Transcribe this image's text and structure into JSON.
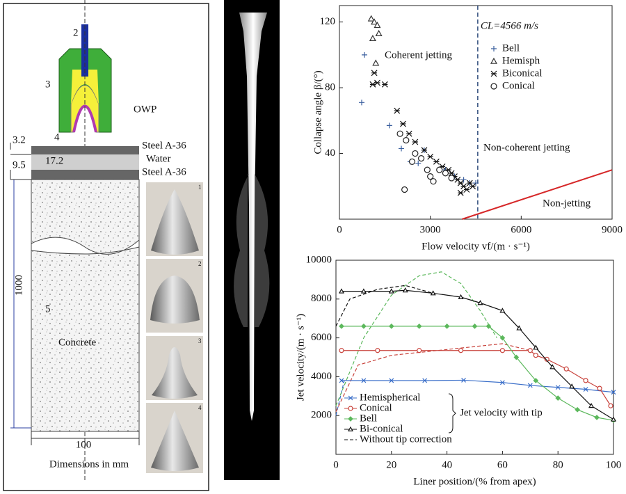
{
  "diagram": {
    "part_labels": [
      "2",
      "3",
      "4",
      "OWP",
      "5"
    ],
    "dims": [
      "3.2",
      "9.5",
      "17.2",
      "1000",
      "100"
    ],
    "layers": [
      "Steel A-36",
      "Water",
      "Steel A-36"
    ],
    "material": "Concrete",
    "caption": "Dimensions in mm",
    "photo_numbers": [
      "1",
      "2",
      "3",
      "4"
    ]
  },
  "chart_data": [
    {
      "type": "scatter",
      "xlabel": "Flow velocity vf/(m · s⁻¹)",
      "ylabel": "Collapse angle β/(°)",
      "xlim": [
        0,
        9000
      ],
      "xticks": [
        0,
        3000,
        6000,
        9000
      ],
      "ylim": [
        0,
        130
      ],
      "yticks": [
        40,
        80,
        120
      ],
      "series": [
        {
          "name": "Bell",
          "color": "#3a5f9e",
          "marker": "plus",
          "x": [
            735,
            826,
            1650,
            2043,
            2340,
            2600,
            2800,
            3500,
            3800,
            4100,
            4300,
            4500
          ],
          "values": [
            71,
            100,
            57,
            43,
            35,
            34,
            42,
            30,
            26,
            24,
            22,
            22
          ]
        },
        {
          "name": "Hemisph",
          "color": "#333333",
          "marker": "triangle",
          "x": [
            1050,
            1150,
            1250,
            1300,
            1100,
            1200
          ],
          "values": [
            122,
            120,
            118,
            113,
            110,
            95
          ]
        },
        {
          "name": "Biconical",
          "color": "#111111",
          "marker": "asterisk",
          "x": [
            1150,
            1250,
            1100,
            1500,
            1900,
            2100,
            2300,
            2500,
            2800,
            3000,
            3200,
            3400,
            3600,
            3700,
            3800,
            3900,
            4000,
            4100,
            4200,
            4300,
            4400,
            4000
          ],
          "values": [
            89,
            83,
            82,
            82,
            66,
            58,
            52,
            47,
            42,
            38,
            35,
            32,
            30,
            28,
            26,
            24,
            22,
            20,
            18,
            22,
            20,
            16
          ]
        },
        {
          "name": "Conical",
          "color": "#222222",
          "marker": "circle",
          "x": [
            2000,
            2200,
            2500,
            2700,
            2900,
            3000,
            3100,
            2150,
            2400,
            3300,
            3500,
            3700
          ],
          "values": [
            52,
            48,
            40,
            37,
            30,
            26,
            23,
            18,
            35,
            30,
            28,
            25
          ]
        }
      ],
      "critical_line": {
        "label": "CL=4566 m/s",
        "value": 4566,
        "color": "#2c4a7a"
      },
      "boundary": {
        "x": [
          4050,
          9000
        ],
        "values": [
          0,
          30
        ],
        "color": "#d62728"
      },
      "regions": [
        "Coherent jetting",
        "Non-coherent jetting",
        "Non-jetting"
      ]
    },
    {
      "type": "line",
      "xlabel": "Liner position/(% from apex)",
      "ylabel": "Jet velocity/(m · s⁻¹)",
      "xlim": [
        0,
        100
      ],
      "xticks": [
        0,
        20,
        40,
        60,
        80,
        100
      ],
      "ylim": [
        0,
        10000
      ],
      "yticks": [
        2000,
        4000,
        6000,
        8000,
        10000
      ],
      "series": [
        {
          "name": "Hemispherical",
          "color": "#3b6fc9",
          "marker": "x",
          "x": [
            2,
            10,
            20,
            32,
            46,
            60,
            70,
            80,
            90,
            100
          ],
          "values": [
            3800,
            3800,
            3800,
            3800,
            3820,
            3700,
            3550,
            3450,
            3350,
            3200
          ]
        },
        {
          "name": "Conical",
          "color": "#c8413a",
          "marker": "circle",
          "x": [
            2,
            15,
            30,
            45,
            60,
            70,
            72,
            76,
            83,
            90,
            95,
            99
          ],
          "values": [
            5350,
            5350,
            5350,
            5350,
            5350,
            5350,
            5100,
            4900,
            4400,
            3800,
            3400,
            2500
          ]
        },
        {
          "name": "Bell",
          "color": "#5cb85c",
          "marker": "diamond",
          "x": [
            2,
            10,
            20,
            30,
            40,
            50,
            55,
            60,
            65,
            72,
            80,
            87,
            94,
            100
          ],
          "values": [
            6600,
            6600,
            6600,
            6600,
            6600,
            6600,
            6600,
            6000,
            5000,
            3800,
            2900,
            2300,
            1900,
            1750
          ]
        },
        {
          "name": "Bi-conical",
          "color": "#111111",
          "marker": "triangle",
          "x": [
            2,
            10,
            20,
            25,
            35,
            45,
            52,
            60,
            66,
            72,
            78,
            85,
            92,
            100
          ],
          "values": [
            8400,
            8400,
            8400,
            8450,
            8300,
            8100,
            7800,
            7400,
            6500,
            5500,
            4500,
            3500,
            2500,
            1800
          ]
        }
      ],
      "uncorrected": [
        {
          "color": "#3b6fc9",
          "x": [
            0,
            3
          ],
          "values": [
            2000,
            3800
          ]
        },
        {
          "color": "#c8413a",
          "x": [
            0,
            8,
            20,
            40,
            60,
            70
          ],
          "values": [
            2200,
            4600,
            5100,
            5400,
            5700,
            5350
          ]
        },
        {
          "color": "#5cb85c",
          "x": [
            0,
            10,
            20,
            30,
            38,
            45,
            52,
            58
          ],
          "values": [
            2500,
            6000,
            8200,
            9200,
            9400,
            8800,
            7400,
            6000
          ]
        },
        {
          "color": "#111111",
          "x": [
            0,
            5,
            15,
            25,
            35
          ],
          "values": [
            6600,
            8000,
            8500,
            8700,
            8300
          ]
        }
      ],
      "group_label": "Jet velocity with tip",
      "uncorrected_label": "Without tip correction"
    }
  ]
}
